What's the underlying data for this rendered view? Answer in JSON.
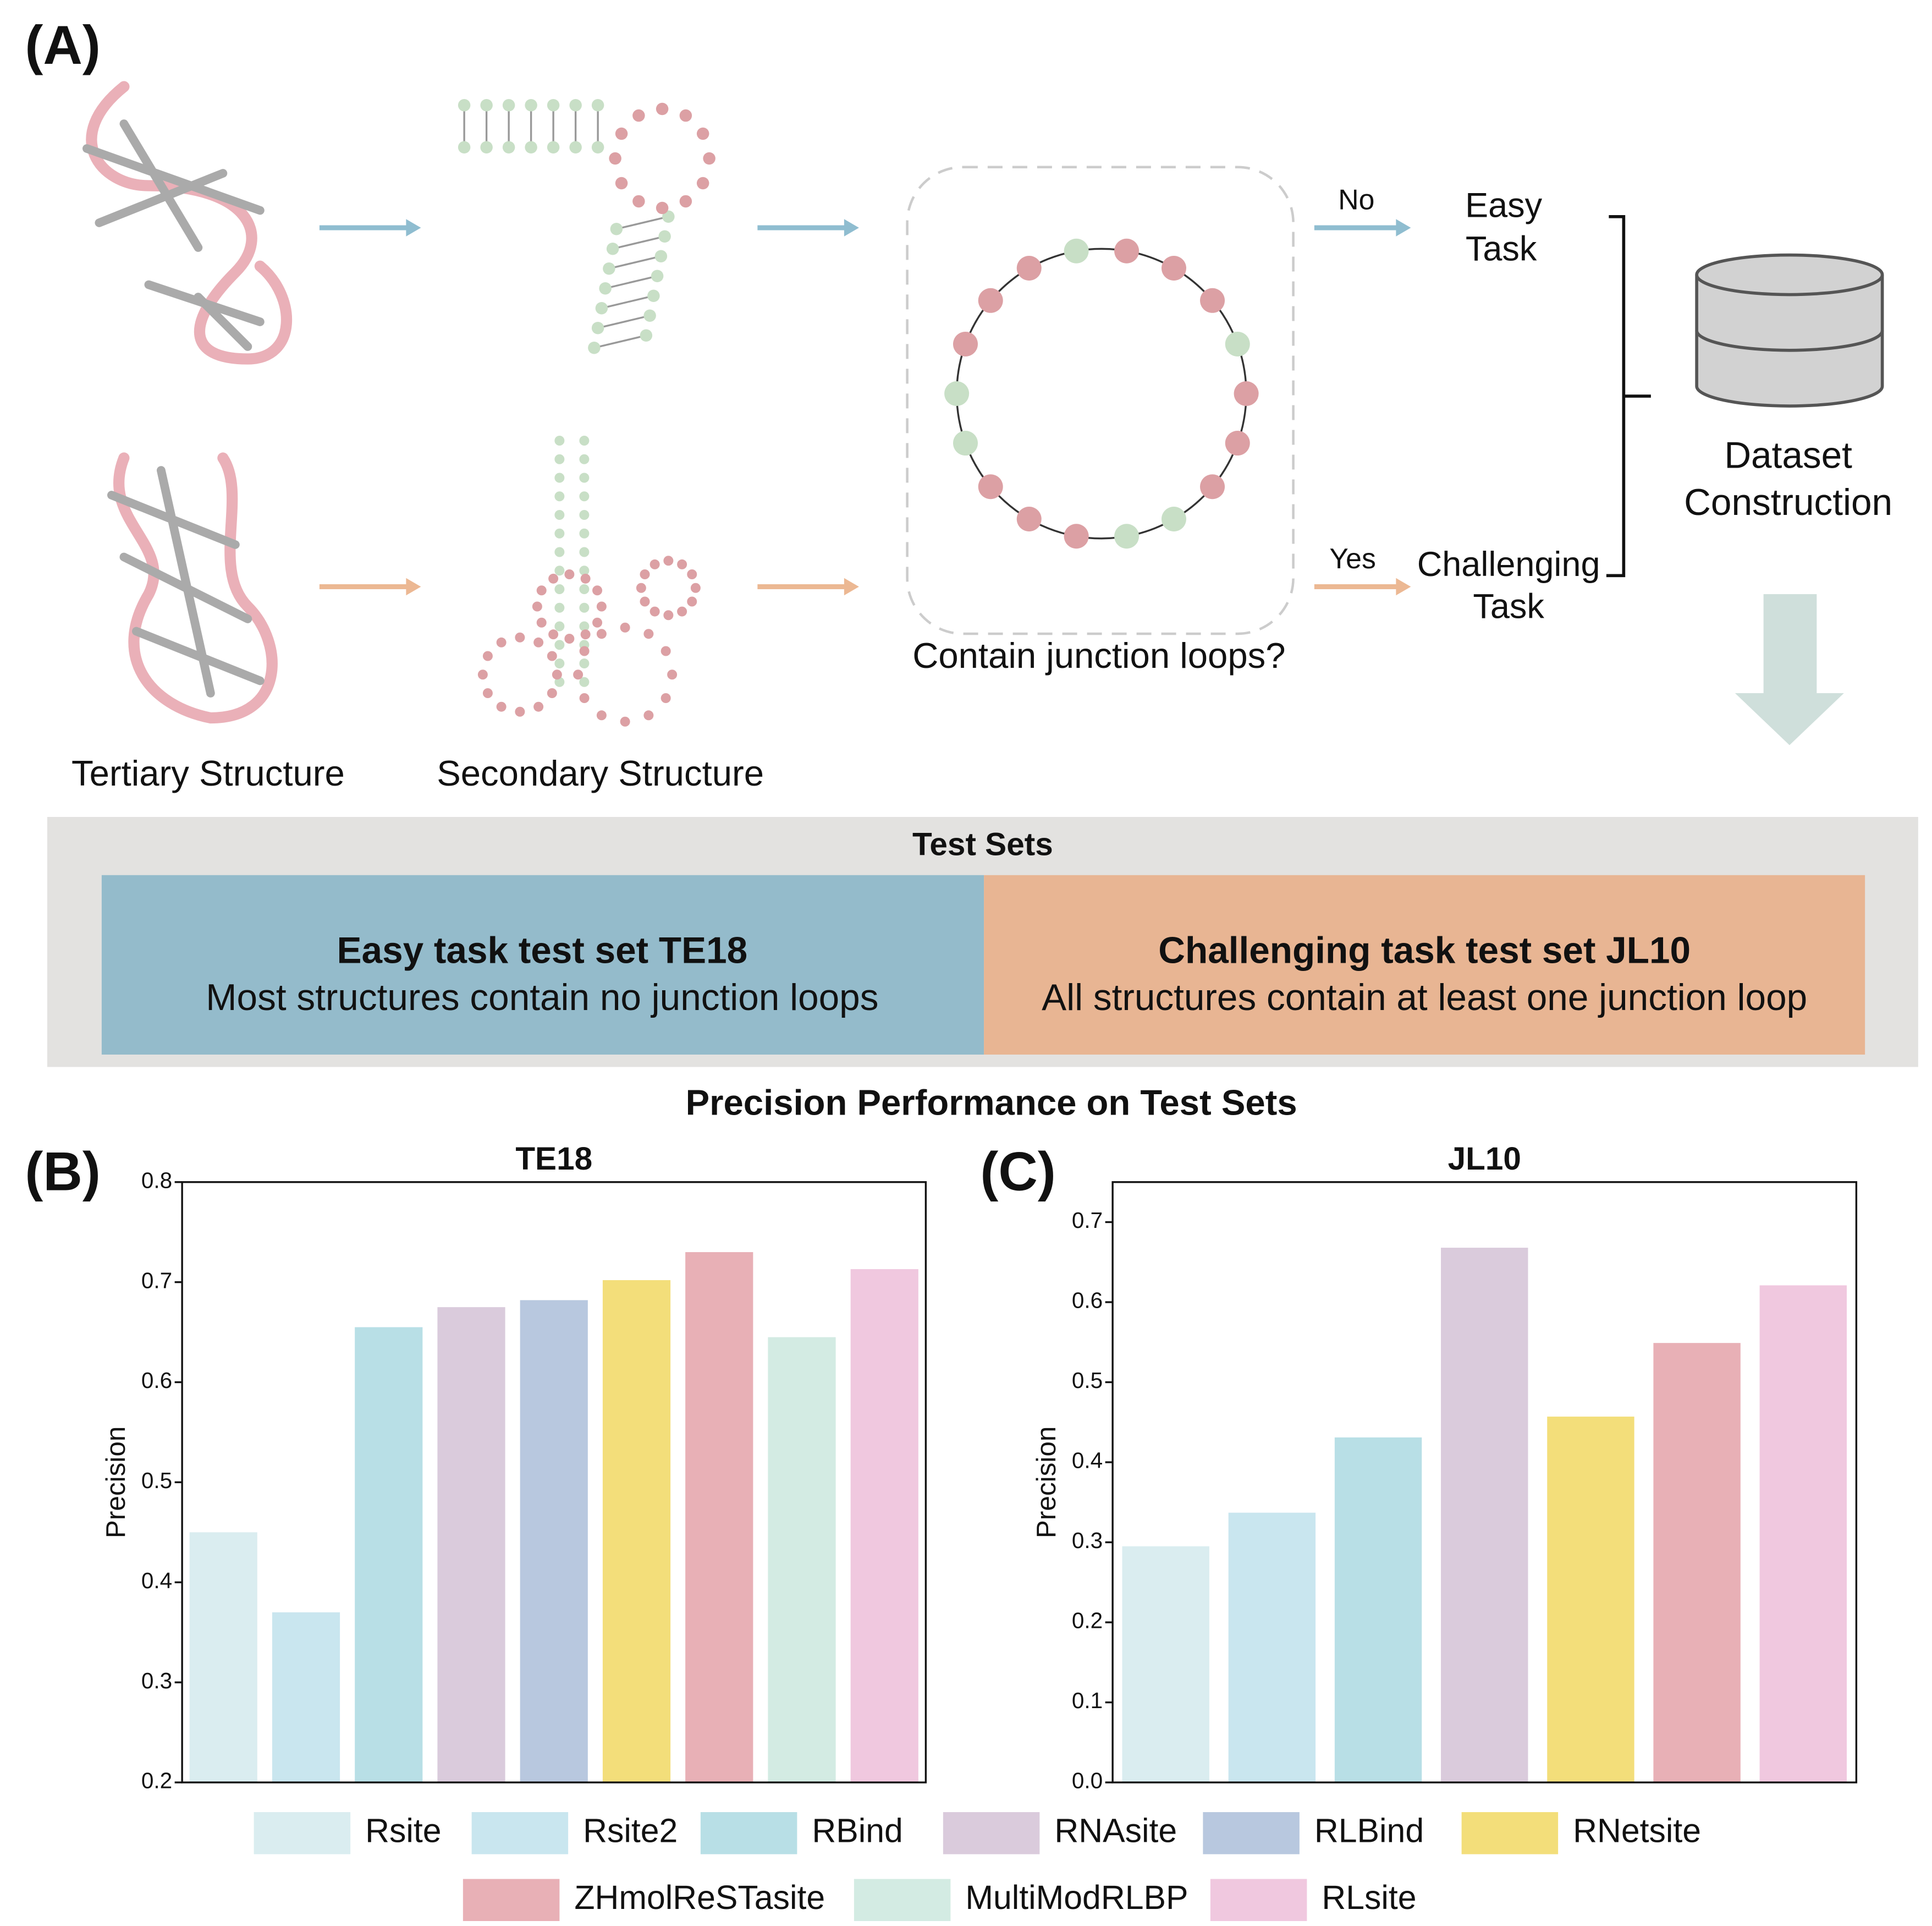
{
  "panel_labels": [
    "(A)",
    "(B)",
    "(C)"
  ],
  "diagram": {
    "tertiary_label": "Tertiary Structure",
    "secondary_label": "Secondary Structure",
    "question": "Contain junction loops?",
    "no": "No",
    "yes": "Yes",
    "easy_task": [
      "Easy",
      "Task"
    ],
    "challenging_task": [
      "Challenging",
      "Task"
    ],
    "dataset": [
      "Dataset",
      "Construction"
    ]
  },
  "test_sets": {
    "title": "Test Sets",
    "easy": {
      "title": "Easy task test set TE18",
      "desc": "Most structures contain no junction loops"
    },
    "challenging": {
      "title": "Challenging task test set JL10",
      "desc": "All structures contain at least one junction loop"
    }
  },
  "charts_title": "Precision Performance on Test Sets",
  "chart_data": [
    {
      "type": "bar",
      "title": "TE18",
      "y_label": "Precision",
      "categories": [
        "Rsite",
        "Rsite2",
        "RBind",
        "RNAsite",
        "RLBind",
        "RNetsite",
        "ZHmolReSTasite",
        "MultiModRLBP",
        "RLsite"
      ],
      "values": [
        0.45,
        0.37,
        0.655,
        0.675,
        0.682,
        0.702,
        0.73,
        0.645,
        0.713
      ],
      "colors": [
        "#daedf0",
        "#c9e6ef",
        "#b8dfe6",
        "#dacbdc",
        "#b8c8df",
        "#f3de7a",
        "#e8b0b6",
        "#d3ebe3",
        "#f0c8df"
      ],
      "ylim": [
        0.2,
        0.8
      ],
      "yticks": [
        0.2,
        0.3,
        0.4,
        0.5,
        0.6,
        0.7,
        0.8
      ]
    },
    {
      "type": "bar",
      "title": "JL10",
      "y_label": "Precision",
      "categories": [
        "Rsite",
        "Rsite2",
        "RBind",
        "RNAsite",
        "RNetsite",
        "ZHmolReSTasite",
        "RLsite"
      ],
      "values": [
        0.295,
        0.337,
        0.431,
        0.668,
        0.457,
        0.549,
        0.621
      ],
      "colors": [
        "#daedf0",
        "#c9e6ef",
        "#b8dfe6",
        "#dacbdc",
        "#f3de7a",
        "#e8b0b6",
        "#f0c8df"
      ],
      "ylim": [
        0,
        0.75
      ],
      "yticks": [
        {
          "value": 0,
          "label": "0.0"
        },
        0.1,
        0.2,
        0.3,
        0.4,
        0.5,
        0.6,
        0.7
      ]
    }
  ]
}
